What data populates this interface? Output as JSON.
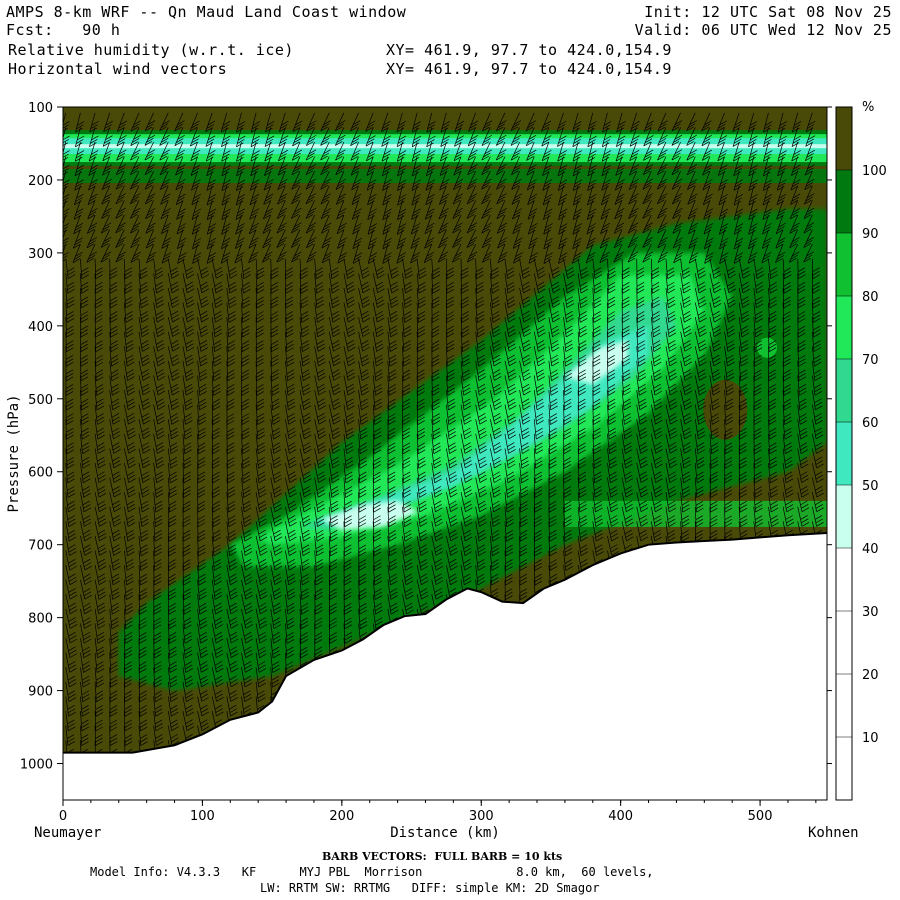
{
  "header": {
    "title": "AMPS 8-km WRF -- Qn Maud Land Coast window",
    "forecast": "Fcst:   90 h",
    "init": "Init: 12 UTC Sat 08 Nov 25",
    "valid": "Valid: 06 UTC Wed 12 Nov 25",
    "field1": "Relative humidity (w.r.t. ice)",
    "field2": "Horizontal wind vectors",
    "xy1": "XY= 461.9, 97.7 to 424.0,154.9",
    "xy2": "XY= 461.9, 97.7 to 424.0,154.9"
  },
  "footer": {
    "barb": "BARB VECTORS:  FULL BARB = 10 kts",
    "model_info": "Model Info: V4.3.3   KF      MYJ PBL  Morrison             8.0 km,  60 levels,",
    "model_info2": "LW: RRTM SW: RRTMG   DIFF: simple KM: 2D Smagor"
  },
  "chart_data": {
    "type": "heatmap",
    "title": "",
    "xlabel": "Distance (km)",
    "ylabel": "Pressure (hPa)",
    "x_start_label": "Neumayer",
    "x_end_label": "Kohnen",
    "xlim": [
      0,
      548
    ],
    "ylim": [
      1050,
      100
    ],
    "x_ticks": [
      0,
      100,
      200,
      300,
      400,
      500
    ],
    "y_ticks": [
      100,
      200,
      300,
      400,
      500,
      600,
      700,
      800,
      900,
      1000
    ],
    "colorbar": {
      "unit": "%",
      "levels": [
        10,
        20,
        30,
        40,
        50,
        60,
        70,
        80,
        90,
        100
      ],
      "colors": [
        "#ffffff",
        "#ffffff",
        "#ffffff",
        "#c8ffee",
        "#40e8c0",
        "#30d890",
        "#20e858",
        "#10c030",
        "#007a10",
        "#4a4a08"
      ]
    },
    "surface_pressure_profile": {
      "distance_km": [
        0,
        50,
        80,
        100,
        120,
        140,
        150,
        160,
        180,
        200,
        215,
        230,
        245,
        260,
        275,
        290,
        300,
        315,
        330,
        345,
        360,
        380,
        400,
        420,
        440,
        460,
        480,
        500,
        520,
        548
      ],
      "pressure_hpa": [
        985,
        985,
        975,
        960,
        940,
        930,
        915,
        880,
        858,
        845,
        830,
        810,
        798,
        795,
        775,
        760,
        765,
        778,
        780,
        760,
        748,
        728,
        712,
        700,
        697,
        695,
        693,
        690,
        687,
        684
      ]
    },
    "rh_regions": [
      {
        "name": "tropopause_dry_band",
        "pressure_hpa": [
          140,
          170
        ],
        "rh_percent": 60
      },
      {
        "name": "background_moist",
        "rh_percent": 100
      },
      {
        "name": "sloping_dry_tongue",
        "rh_min_percent": 30,
        "rh_max_percent": 90
      }
    ],
    "wind_barb": {
      "full_barb_kts": 10
    }
  }
}
